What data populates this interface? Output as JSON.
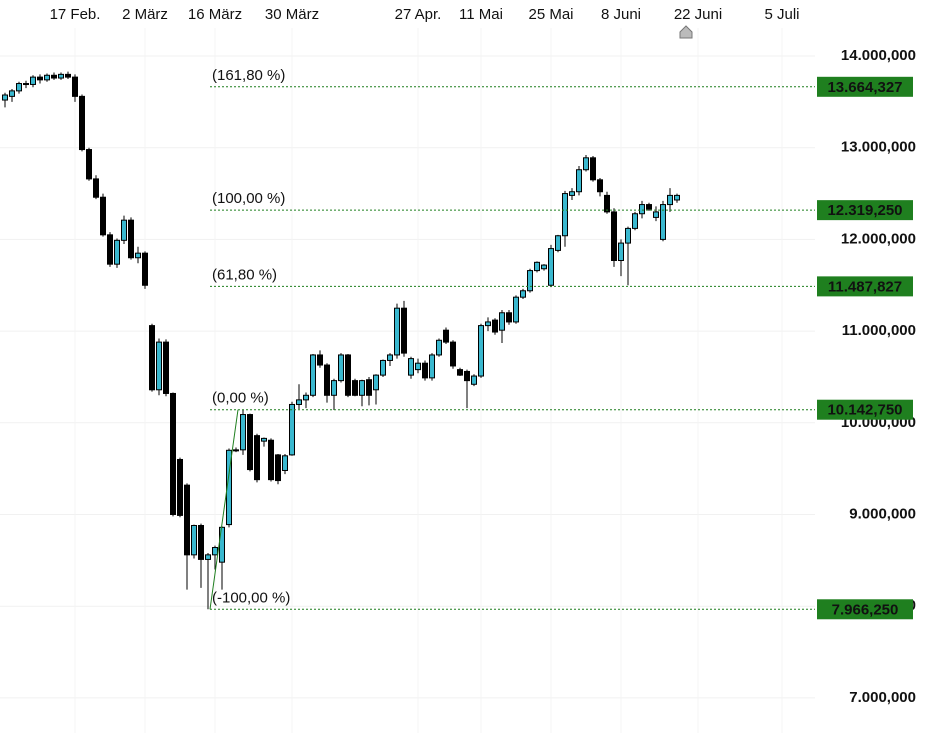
{
  "chart_data": {
    "type": "candlestick",
    "categories": [
      null,
      null,
      null,
      null,
      null,
      null,
      null,
      null,
      null,
      null,
      "17 Feb.",
      null,
      null,
      null,
      null,
      null,
      null,
      null,
      null,
      null,
      "2 März",
      null,
      null,
      null,
      null,
      null,
      null,
      null,
      null,
      null,
      "16 März",
      null,
      null,
      null,
      null,
      null,
      null,
      null,
      null,
      null,
      null,
      "30 März",
      null,
      null,
      null,
      null,
      null,
      null,
      null,
      null,
      null,
      null,
      null,
      null,
      null,
      null,
      null,
      null,
      null,
      "27 Apr.",
      null,
      null,
      null,
      null,
      null,
      null,
      null,
      null,
      "11 Mai",
      null,
      null,
      null,
      null,
      null,
      null,
      null,
      null,
      null,
      "25 Mai",
      null,
      null,
      null,
      null,
      null,
      null,
      null,
      null,
      null,
      "8 Juni",
      null,
      null,
      null,
      null,
      null,
      null,
      null,
      null,
      null,
      null,
      "22 Juni",
      null,
      null,
      null,
      null,
      null,
      null,
      null,
      null,
      null,
      null,
      null,
      "5 Juli"
    ],
    "open": [
      13520,
      13560,
      13620,
      13700,
      13690,
      13770,
      13740,
      13790,
      13760,
      13800,
      13770,
      13560,
      12980,
      12660,
      12460,
      12050,
      11730,
      11990,
      12210,
      11800,
      11850,
      11060,
      10360,
      10880,
      10320,
      9600,
      9320,
      8560,
      8880,
      8510,
      8560,
      8480,
      8890,
      9700,
      9705,
      10090,
      9860,
      9800,
      9810,
      9650,
      9480,
      9650,
      10200,
      10250,
      10300,
      10740,
      10630,
      10300,
      10460,
      10740,
      10460,
      10300,
      10470,
      10360,
      10520,
      10680,
      10740,
      11250,
      10520,
      10580,
      10650,
      10490,
      10740,
      11010,
      10880,
      10580,
      10560,
      10420,
      10510,
      11060,
      11120,
      11010,
      11200,
      11100,
      11370,
      11440,
      11660,
      11680,
      11500,
      11880,
      12040,
      12480,
      12520,
      12760,
      12890,
      12650,
      12480,
      12300,
      11770,
      11960,
      12120,
      12280,
      12380,
      12240,
      12000,
      12380,
      12430,
      null,
      null,
      null,
      null,
      null,
      null,
      null,
      null,
      null,
      null,
      null,
      null,
      null,
      null,
      null
    ],
    "high": [
      13600,
      13640,
      13720,
      13730,
      13790,
      13800,
      13810,
      13820,
      13820,
      13830,
      13800,
      13580,
      13000,
      12700,
      12500,
      12080,
      12010,
      12260,
      12240,
      11920,
      11870,
      11080,
      10920,
      10910,
      10330,
      9620,
      9340,
      8890,
      8900,
      8580,
      8660,
      8870,
      9720,
      9730,
      10142.75,
      10100,
      9880,
      9840,
      9830,
      9660,
      9660,
      10230,
      10420,
      10330,
      10750,
      10790,
      10650,
      10480,
      10760,
      10750,
      10480,
      10470,
      10500,
      10530,
      10690,
      10760,
      11300,
      11330,
      10720,
      10700,
      10680,
      10760,
      10920,
      11040,
      10900,
      10600,
      10580,
      10530,
      11080,
      11150,
      11140,
      11230,
      11230,
      11390,
      11460,
      11680,
      11760,
      11730,
      11940,
      12050,
      12530,
      12560,
      12800,
      12920,
      12910,
      12670,
      12520,
      12340,
      12000,
      12140,
      12300,
      12420,
      12400,
      12360,
      12420,
      12560,
      12500,
      null,
      null,
      null,
      null,
      null,
      null,
      null,
      null,
      null,
      null,
      null,
      null,
      null,
      null,
      null
    ],
    "low": [
      13440,
      13500,
      13590,
      13650,
      13660,
      13700,
      13720,
      13740,
      13740,
      13750,
      13500,
      12960,
      12640,
      12440,
      12030,
      11700,
      11690,
      11950,
      11780,
      11740,
      11460,
      10340,
      10300,
      10290,
      8980,
      8970,
      8180,
      8520,
      8200,
      7966.25,
      8400,
      8180,
      8860,
      9680,
      9650,
      9470,
      9350,
      9740,
      9360,
      9330,
      9440,
      9640,
      10150,
      10160,
      10280,
      10600,
      10220,
      10140,
      10440,
      10280,
      10290,
      10180,
      10190,
      10200,
      10500,
      10620,
      10700,
      10720,
      10480,
      10540,
      10460,
      10460,
      10720,
      10860,
      10590,
      10510,
      10160,
      10400,
      10490,
      11000,
      10960,
      10870,
      11070,
      11080,
      11350,
      11420,
      11640,
      11660,
      11480,
      11860,
      11920,
      12430,
      12480,
      12740,
      12630,
      12470,
      12280,
      11700,
      11600,
      11500,
      12100,
      12230,
      12310,
      12200,
      11980,
      12300,
      12400,
      null,
      null,
      null,
      null,
      null,
      null,
      null,
      null,
      null,
      null,
      null,
      null,
      null,
      null,
      null
    ],
    "close": [
      13575,
      13620,
      13700,
      13690,
      13770,
      13740,
      13790,
      13760,
      13800,
      13770,
      13560,
      12980,
      12660,
      12460,
      12050,
      11730,
      11990,
      12210,
      11800,
      11850,
      11500,
      10360,
      10880,
      10320,
      9000,
      8990,
      8560,
      8880,
      8510,
      8560,
      8640,
      8860,
      9700,
      9705,
      10090,
      9490,
      9380,
      9830,
      9380,
      9370,
      9640,
      10200,
      10250,
      10300,
      10740,
      10630,
      10300,
      10460,
      10740,
      10300,
      10300,
      10460,
      10300,
      10520,
      10680,
      10740,
      11250,
      10760,
      10700,
      10650,
      10490,
      10740,
      10900,
      10880,
      10620,
      10520,
      10460,
      10510,
      11060,
      11100,
      10990,
      11200,
      11100,
      11370,
      11440,
      11660,
      11750,
      11720,
      11900,
      12040,
      12500,
      12520,
      12760,
      12890,
      12650,
      12520,
      12300,
      11770,
      11960,
      12120,
      12280,
      12380,
      12330,
      12300,
      12380,
      12480,
      12480,
      null,
      null,
      null,
      null,
      null,
      null,
      null,
      null,
      null,
      null,
      null,
      null,
      null,
      null,
      null
    ],
    "up_color": "#3ab8cf",
    "down_color": "#000000",
    "ylim": [
      6617,
      14611
    ],
    "yticks": [
      {
        "value": 7000,
        "label": "7.000,000"
      },
      {
        "value": 8000,
        "label": "8.000,000"
      },
      {
        "value": 9000,
        "label": "9.000,000"
      },
      {
        "value": 10000,
        "label": "10.000,000"
      },
      {
        "value": 11000,
        "label": "11.000,000"
      },
      {
        "value": 12000,
        "label": "12.000,000"
      },
      {
        "value": 13000,
        "label": "13.000,000"
      },
      {
        "value": 14000,
        "label": "14.000,000"
      }
    ],
    "grid": true,
    "fib_color": "#1f7f1f",
    "fib_levels": [
      {
        "label": "(161,80 %)",
        "value": 13664.327,
        "value_label": "13.664,327"
      },
      {
        "label": "(100,00 %)",
        "value": 12319.25,
        "value_label": "12.319,250"
      },
      {
        "label": "(61,80 %)",
        "value": 11487.827,
        "value_label": "11.487,827"
      },
      {
        "label": "(0,00 %)",
        "value": 10142.75,
        "value_label": "10.142,750"
      },
      {
        "label": "(-100,00 %)",
        "value": 7966.25,
        "value_label": "7.966,250"
      }
    ]
  }
}
